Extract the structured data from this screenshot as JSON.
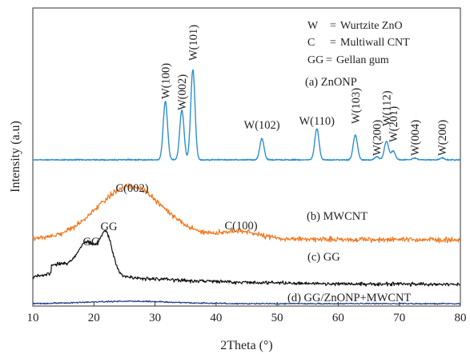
{
  "chart_data": {
    "type": "line",
    "xlabel": "2Theta (°)",
    "ylabel": "Intensity (a.u)",
    "xlim": [
      10,
      80
    ],
    "x_ticks": [
      10,
      20,
      30,
      40,
      50,
      60,
      70,
      80
    ],
    "y_ticks_shown": false,
    "grid": false,
    "legend_position": "top-right",
    "legend": [
      {
        "key": "W",
        "sep": "=",
        "text": "Wurtzite ZnO"
      },
      {
        "key": "C",
        "sep": "=",
        "text": "Multiwall CNT"
      },
      {
        "key": "GG",
        "sep": "=",
        "text": "Gellan gum"
      }
    ],
    "series": [
      {
        "name": "(a) ZnONP",
        "color": "#2e8fcf",
        "baseline": 0.0,
        "peaks": [
          {
            "x": 31.7,
            "height": 0.94,
            "label": "W(100)"
          },
          {
            "x": 34.4,
            "height": 0.8,
            "label": "W(002)"
          },
          {
            "x": 36.2,
            "height": 1.45,
            "label": "W(101)"
          },
          {
            "x": 47.5,
            "height": 0.34,
            "label": "W(102)"
          },
          {
            "x": 56.5,
            "height": 0.5,
            "label": "W(110)"
          },
          {
            "x": 62.8,
            "height": 0.4,
            "label": "W(103)"
          },
          {
            "x": 66.3,
            "height": 0.05,
            "label": "W(200)"
          },
          {
            "x": 67.9,
            "height": 0.3,
            "label": "W(112)"
          },
          {
            "x": 69.0,
            "height": 0.14,
            "label": "W(201)"
          },
          {
            "x": 72.5,
            "height": 0.03,
            "label": "W(004)"
          },
          {
            "x": 77.0,
            "height": 0.03,
            "label": "W(200)"
          }
        ]
      },
      {
        "name": "(b) MWCNT",
        "color": "#f07a22",
        "peaks": [
          {
            "x": 25.9,
            "height": 0.62,
            "label": "C(002)"
          },
          {
            "x": 43.9,
            "height": 0.08,
            "label": "C(100)"
          }
        ]
      },
      {
        "name": "(c) GG",
        "color": "#111111",
        "peaks": [
          {
            "x": 19.0,
            "height": 0.4,
            "label": "GG"
          },
          {
            "x": 22.0,
            "height": 0.6,
            "label": "GG"
          }
        ]
      },
      {
        "name": "(d) GG/ZnONP+MWCNT",
        "color": "#1f3c88",
        "peaks": []
      }
    ]
  }
}
